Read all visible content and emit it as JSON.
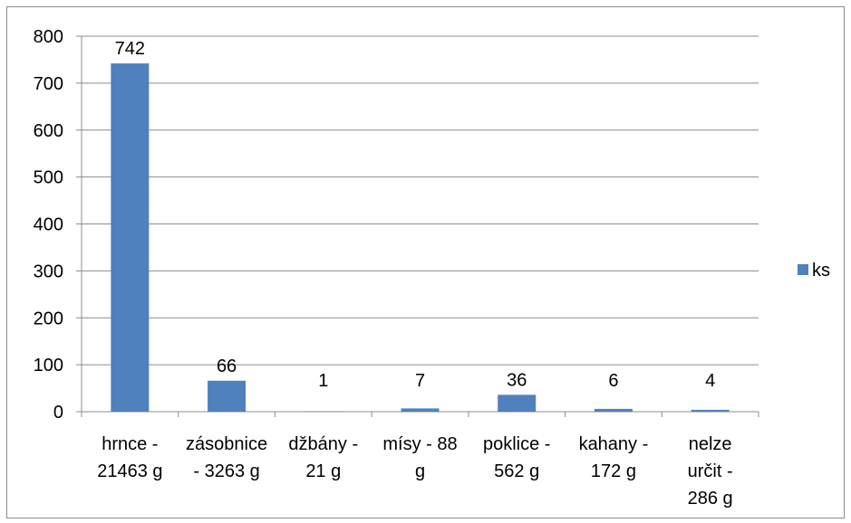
{
  "chart_data": {
    "type": "bar",
    "categories": [
      [
        "hrnce -",
        "21463 g"
      ],
      [
        "zásobnice",
        "- 3263 g"
      ],
      [
        "džbány -",
        "21 g"
      ],
      [
        "mísy - 88",
        "g"
      ],
      [
        "poklice -",
        "562 g"
      ],
      [
        "kahany -",
        "172 g"
      ],
      [
        "nelze",
        "určit -",
        "286 g"
      ]
    ],
    "series": [
      {
        "name": "ks",
        "values": [
          742,
          66,
          1,
          7,
          36,
          6,
          4
        ],
        "color": "#4f81bd"
      }
    ],
    "ylim": [
      0,
      800
    ],
    "yticks": [
      0,
      100,
      200,
      300,
      400,
      500,
      600,
      700,
      800
    ],
    "grid": true,
    "data_labels": true,
    "legend": "right"
  }
}
